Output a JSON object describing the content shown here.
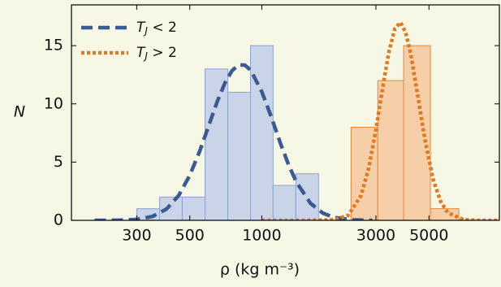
{
  "chart_data": {
    "type": "histogram",
    "xlabel": "ρ (kg m⁻³)",
    "ylabel": "N",
    "log_x": true,
    "xlim": [
      160,
      9850
    ],
    "ylim": [
      0,
      18.5
    ],
    "xticks": [
      300,
      500,
      1000,
      3000,
      5000
    ],
    "yticks": [
      0,
      5,
      10,
      15
    ],
    "legend": "upper left",
    "histograms": [
      {
        "color": "#8da2cc",
        "fill": "#c9d4e8",
        "bins": [
          300,
          374,
          465,
          579,
          721,
          897,
          1115,
          1388,
          1727
        ],
        "values": [
          1,
          2,
          2,
          13,
          11,
          15,
          3,
          4
        ]
      },
      {
        "color": "#e8873a",
        "fill": "#f6cfa9",
        "bins": [
          2361,
          3055,
          3917,
          5070,
          6670
        ],
        "values": [
          8,
          12,
          15,
          1
        ]
      }
    ],
    "series": [
      {
        "name": "TJ < 2",
        "color": "#3b5a92",
        "line": "dashed",
        "x": [
          200,
          250,
          300,
          350,
          400,
          450,
          500,
          550,
          600,
          650,
          700,
          750,
          800,
          850,
          900,
          1000,
          1100,
          1200,
          1300,
          1400,
          1600,
          1800,
          2000,
          2400,
          2900
        ],
        "values": [
          0,
          0.01,
          0.08,
          0.34,
          0.98,
          2.16,
          3.86,
          5.93,
          8.13,
          10.16,
          11.76,
          12.84,
          13.35,
          13.33,
          12.87,
          11.05,
          8.78,
          6.55,
          4.66,
          3.23,
          1.45,
          0.62,
          0.25,
          0.04,
          0
        ]
      },
      {
        "name": "TJ > 2",
        "color": "#e07a1f",
        "line": "dotted",
        "x": [
          1000,
          1500,
          2000,
          2300,
          2600,
          2800,
          3000,
          3200,
          3400,
          3600,
          3800,
          4000,
          4200,
          4500,
          4800,
          5200,
          5600,
          6000,
          7000,
          8000,
          9800
        ],
        "values": [
          0,
          0,
          0.04,
          0.43,
          2.12,
          4.49,
          7.75,
          11.35,
          14.46,
          16.46,
          17,
          16.1,
          14.24,
          10.57,
          7.03,
          3.54,
          1.59,
          0.65,
          0.05,
          0,
          0
        ]
      }
    ]
  }
}
